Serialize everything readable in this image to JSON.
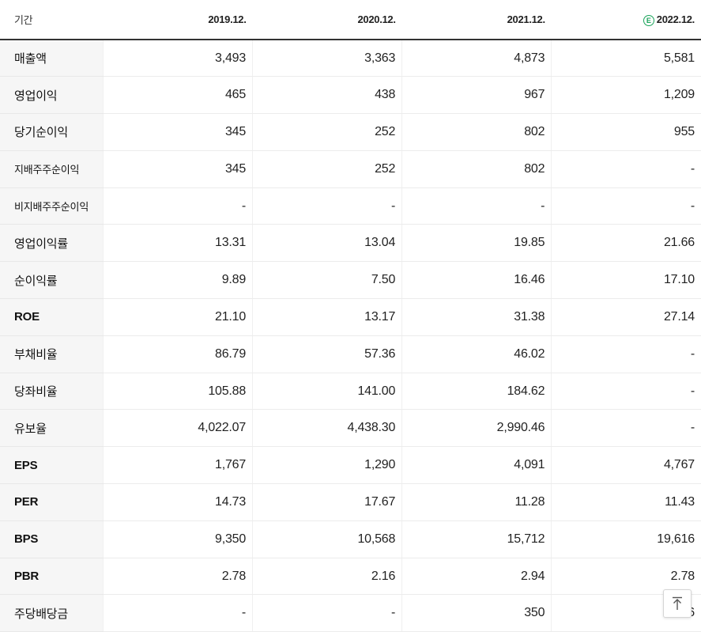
{
  "table": {
    "header": {
      "label": "기간",
      "periods": [
        "2019.12.",
        "2020.12.",
        "2021.12.",
        "2022.12."
      ],
      "estimate_marker": "E"
    },
    "rows": [
      {
        "label": "매출액",
        "values": [
          "3,493",
          "3,363",
          "4,873",
          "5,581"
        ]
      },
      {
        "label": "영업이익",
        "values": [
          "465",
          "438",
          "967",
          "1,209"
        ]
      },
      {
        "label": "당기순이익",
        "values": [
          "345",
          "252",
          "802",
          "955"
        ]
      },
      {
        "label": "지배주주순이익",
        "values": [
          "345",
          "252",
          "802",
          "-"
        ]
      },
      {
        "label": "비지배주주순이익",
        "values": [
          "-",
          "-",
          "-",
          "-"
        ]
      },
      {
        "label": "영업이익률",
        "values": [
          "13.31",
          "13.04",
          "19.85",
          "21.66"
        ]
      },
      {
        "label": "순이익률",
        "values": [
          "9.89",
          "7.50",
          "16.46",
          "17.10"
        ]
      },
      {
        "label": "ROE",
        "values": [
          "21.10",
          "13.17",
          "31.38",
          "27.14"
        ]
      },
      {
        "label": "부채비율",
        "values": [
          "86.79",
          "57.36",
          "46.02",
          "-"
        ]
      },
      {
        "label": "당좌비율",
        "values": [
          "105.88",
          "141.00",
          "184.62",
          "-"
        ]
      },
      {
        "label": "유보율",
        "values": [
          "4,022.07",
          "4,438.30",
          "2,990.46",
          "-"
        ]
      },
      {
        "label": "EPS",
        "values": [
          "1,767",
          "1,290",
          "4,091",
          "4,767"
        ]
      },
      {
        "label": "PER",
        "values": [
          "14.73",
          "17.67",
          "11.28",
          "11.43"
        ]
      },
      {
        "label": "BPS",
        "values": [
          "9,350",
          "10,568",
          "15,712",
          "19,616"
        ]
      },
      {
        "label": "PBR",
        "values": [
          "2.78",
          "2.16",
          "2.94",
          "2.78"
        ]
      },
      {
        "label": "주당배당금",
        "values": [
          "-",
          "-",
          "350",
          "6"
        ]
      }
    ]
  },
  "scroll_top_button": {
    "icon": "arrow-up-to-top-icon"
  },
  "colors": {
    "estimate": "#1aa35a",
    "label_bg": "#f6f6f6",
    "header_rule": "#333333"
  }
}
